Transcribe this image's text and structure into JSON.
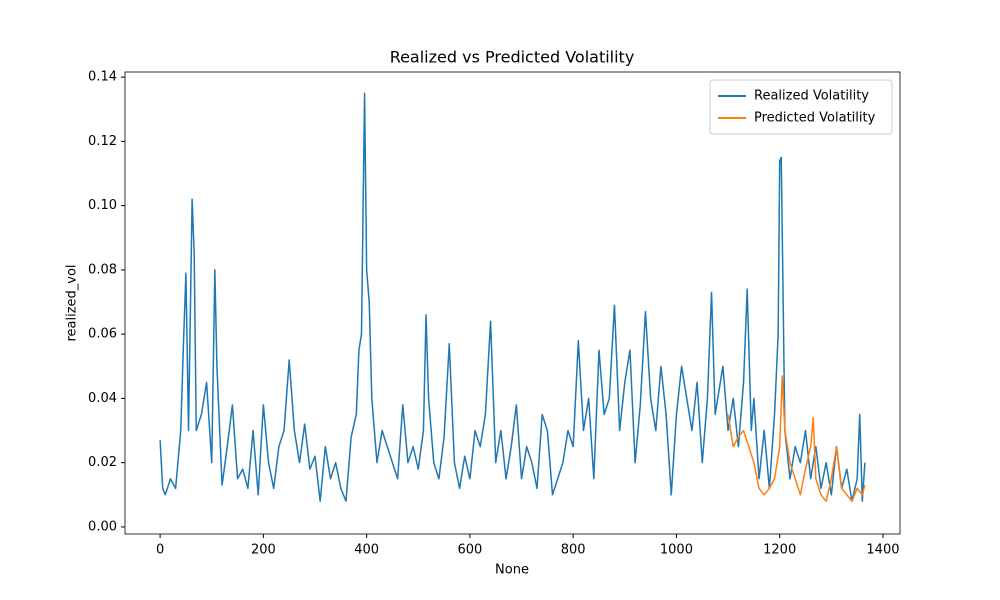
{
  "chart_data": {
    "type": "line",
    "title": "Realized vs Predicted Volatility",
    "xlabel": "None",
    "ylabel": "realized_vol",
    "xlim": [
      -68,
      1433
    ],
    "ylim": [
      -0.0022,
      0.1416
    ],
    "xticks": [
      0,
      200,
      400,
      600,
      800,
      1000,
      1200,
      1400
    ],
    "yticks": [
      {
        "value": 0,
        "label": "0.00"
      },
      {
        "value": 0.02,
        "label": "0.02"
      },
      {
        "value": 0.04,
        "label": "0.04"
      },
      {
        "value": 0.06,
        "label": "0.06"
      },
      {
        "value": 0.08,
        "label": "0.08"
      },
      {
        "value": 0.1,
        "label": "0.10"
      },
      {
        "value": 0.12,
        "label": "0.12"
      },
      {
        "value": 0.14,
        "label": "0.14"
      }
    ],
    "legend": "upper right",
    "grid": false,
    "series": [
      {
        "name": "Realized Volatility",
        "color": "#1f77b4",
        "x": [
          0,
          5,
          10,
          20,
          30,
          40,
          45,
          50,
          55,
          62,
          66,
          70,
          80,
          90,
          100,
          106,
          110,
          120,
          130,
          140,
          150,
          160,
          170,
          180,
          190,
          200,
          210,
          220,
          230,
          240,
          250,
          260,
          270,
          280,
          290,
          300,
          310,
          320,
          330,
          340,
          350,
          360,
          370,
          380,
          385,
          390,
          396,
          400,
          405,
          410,
          420,
          430,
          440,
          450,
          460,
          470,
          480,
          490,
          500,
          510,
          515,
          520,
          530,
          540,
          550,
          560,
          570,
          580,
          590,
          600,
          610,
          620,
          630,
          640,
          650,
          660,
          670,
          680,
          690,
          700,
          710,
          720,
          730,
          740,
          750,
          760,
          770,
          780,
          790,
          800,
          810,
          820,
          830,
          840,
          850,
          860,
          870,
          880,
          890,
          900,
          910,
          920,
          930,
          940,
          950,
          960,
          970,
          980,
          990,
          1000,
          1010,
          1020,
          1030,
          1040,
          1050,
          1060,
          1068,
          1075,
          1080,
          1090,
          1100,
          1110,
          1120,
          1130,
          1137,
          1145,
          1150,
          1160,
          1170,
          1180,
          1190,
          1197,
          1200,
          1203,
          1210,
          1220,
          1230,
          1240,
          1250,
          1260,
          1270,
          1280,
          1290,
          1300,
          1310,
          1320,
          1330,
          1340,
          1350,
          1355,
          1360,
          1365
        ],
        "values": [
          0.027,
          0.012,
          0.01,
          0.015,
          0.012,
          0.03,
          0.056,
          0.079,
          0.03,
          0.102,
          0.085,
          0.03,
          0.035,
          0.045,
          0.02,
          0.08,
          0.05,
          0.013,
          0.025,
          0.038,
          0.015,
          0.018,
          0.012,
          0.03,
          0.01,
          0.038,
          0.02,
          0.012,
          0.025,
          0.03,
          0.052,
          0.03,
          0.02,
          0.032,
          0.018,
          0.022,
          0.008,
          0.025,
          0.015,
          0.02,
          0.012,
          0.008,
          0.028,
          0.035,
          0.055,
          0.06,
          0.135,
          0.08,
          0.07,
          0.04,
          0.02,
          0.03,
          0.025,
          0.02,
          0.015,
          0.038,
          0.02,
          0.025,
          0.018,
          0.03,
          0.066,
          0.04,
          0.02,
          0.015,
          0.028,
          0.057,
          0.02,
          0.012,
          0.022,
          0.015,
          0.03,
          0.025,
          0.035,
          0.064,
          0.02,
          0.03,
          0.015,
          0.025,
          0.038,
          0.015,
          0.025,
          0.02,
          0.012,
          0.035,
          0.03,
          0.01,
          0.015,
          0.02,
          0.03,
          0.025,
          0.058,
          0.03,
          0.04,
          0.015,
          0.055,
          0.035,
          0.04,
          0.069,
          0.03,
          0.045,
          0.055,
          0.02,
          0.038,
          0.067,
          0.04,
          0.03,
          0.05,
          0.035,
          0.01,
          0.035,
          0.05,
          0.04,
          0.03,
          0.045,
          0.02,
          0.04,
          0.073,
          0.035,
          0.04,
          0.05,
          0.03,
          0.04,
          0.025,
          0.045,
          0.074,
          0.03,
          0.04,
          0.015,
          0.03,
          0.012,
          0.035,
          0.06,
          0.114,
          0.115,
          0.03,
          0.015,
          0.025,
          0.02,
          0.03,
          0.015,
          0.025,
          0.012,
          0.02,
          0.01,
          0.025,
          0.012,
          0.018,
          0.008,
          0.015,
          0.035,
          0.008,
          0.02
        ]
      },
      {
        "name": "Predicted Volatility",
        "color": "#ff7f0e",
        "x": [
          1100,
          1110,
          1120,
          1130,
          1140,
          1150,
          1160,
          1170,
          1180,
          1190,
          1200,
          1205,
          1210,
          1220,
          1230,
          1240,
          1250,
          1260,
          1265,
          1270,
          1280,
          1290,
          1300,
          1310,
          1320,
          1330,
          1340,
          1350,
          1360,
          1365
        ],
        "values": [
          0.035,
          0.025,
          0.028,
          0.03,
          0.025,
          0.02,
          0.012,
          0.01,
          0.012,
          0.015,
          0.025,
          0.047,
          0.03,
          0.02,
          0.015,
          0.01,
          0.018,
          0.025,
          0.034,
          0.015,
          0.01,
          0.008,
          0.015,
          0.025,
          0.012,
          0.01,
          0.008,
          0.012,
          0.01,
          0.013
        ]
      }
    ]
  }
}
